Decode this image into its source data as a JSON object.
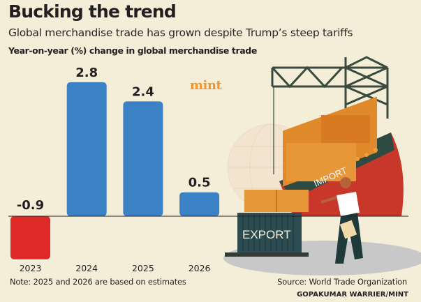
{
  "header": {
    "title": "Bucking the trend",
    "subtitle": "Global merchandise trade has grown despite Trump’s steep tariffs",
    "axis_caption": "Year-on-year (%) change in global merchandise trade"
  },
  "brand": "mint",
  "illustration": {
    "container_label": "EXPORT",
    "ship_label": "IMPORT",
    "icons": [
      "crane-icon",
      "ship-icon",
      "container-icon",
      "globe-icon",
      "worker-icon"
    ]
  },
  "footer": {
    "note": "Note: 2025 and 2026 are based on estimates",
    "source": "Source: World Trade Organization",
    "credit": "GOPAKUMAR WARRIER/MINT"
  },
  "colors": {
    "background": "#f4eed9",
    "positive": "#3a82c3",
    "negative": "#dd2a28",
    "text": "#231f20"
  },
  "chart_data": {
    "type": "bar",
    "title": "Bucking the trend",
    "subtitle": "Global merchandise trade has grown despite Trump’s steep tariffs",
    "xlabel": "",
    "ylabel": "Year-on-year (%) change in global merchandise trade",
    "categories": [
      "2023",
      "2024",
      "2025",
      "2026"
    ],
    "values": [
      -0.9,
      2.8,
      2.4,
      0.5
    ],
    "data_labels": [
      "-0.9",
      "2.8",
      "2.4",
      "0.5"
    ],
    "estimated": [
      false,
      false,
      true,
      true
    ],
    "ylim": [
      -0.9,
      2.8
    ],
    "grid": false,
    "legend": "none"
  }
}
